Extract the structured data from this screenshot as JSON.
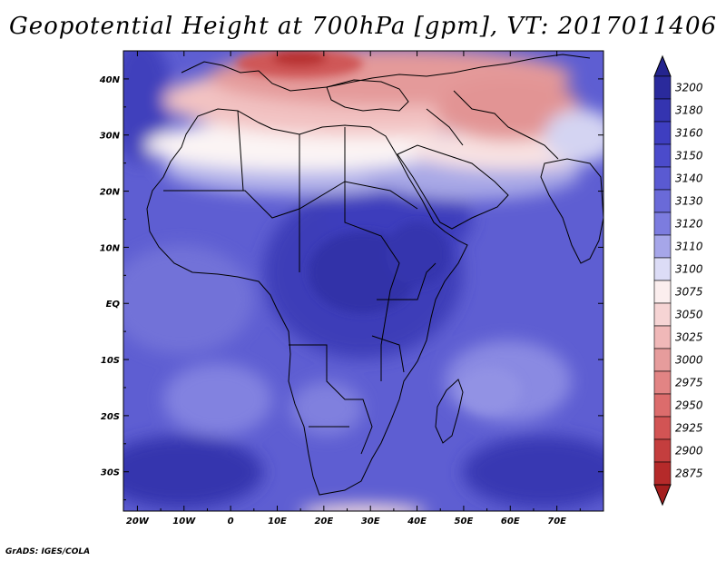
{
  "title": "Geopotential Height at 700hPa [gpm], VT: 2017011406",
  "credit": "GrADS: IGES/COLA",
  "map": {
    "lon_range": [
      -23,
      80
    ],
    "lat_range": [
      -37,
      45
    ],
    "lon_ticks": [
      {
        "value": -20,
        "label": "20W"
      },
      {
        "value": -10,
        "label": "10W"
      },
      {
        "value": 0,
        "label": "0"
      },
      {
        "value": 10,
        "label": "10E"
      },
      {
        "value": 20,
        "label": "20E"
      },
      {
        "value": 30,
        "label": "30E"
      },
      {
        "value": 40,
        "label": "40E"
      },
      {
        "value": 50,
        "label": "50E"
      },
      {
        "value": 60,
        "label": "60E"
      },
      {
        "value": 70,
        "label": "70E"
      }
    ],
    "lat_ticks": [
      {
        "value": 40,
        "label": "40N"
      },
      {
        "value": 30,
        "label": "30N"
      },
      {
        "value": 20,
        "label": "20N"
      },
      {
        "value": 10,
        "label": "10N"
      },
      {
        "value": 0,
        "label": "EQ"
      },
      {
        "value": -10,
        "label": "10S"
      },
      {
        "value": -20,
        "label": "20S"
      },
      {
        "value": -30,
        "label": "30S"
      }
    ]
  },
  "colorbar": {
    "levels": [
      "3200",
      "3180",
      "3160",
      "3150",
      "3140",
      "3130",
      "3120",
      "3110",
      "3100",
      "3075",
      "3050",
      "3025",
      "3000",
      "2975",
      "2950",
      "2925",
      "2900",
      "2875"
    ],
    "colors": [
      "#2a2a9c",
      "#3434b0",
      "#3e3ec0",
      "#4b4bcb",
      "#5a5ad2",
      "#6a6ad8",
      "#7c7cdf",
      "#a6a6e9",
      "#dcdcf6",
      "#fbeeee",
      "#f6d4d4",
      "#f0b8b8",
      "#e69c9c",
      "#e28484",
      "#dc6c6c",
      "#d25454",
      "#c43e3e",
      "#b52a2a"
    ]
  },
  "field_colors": {
    "deep": "#3a3ab8",
    "mid": "#5858cc",
    "light": "#7a7adc",
    "pale": "#b8b8ec",
    "white": "#fbf6f6",
    "pink": "#f2c8c8",
    "rose": "#e49a9a",
    "red": "#cf5a5a",
    "darkred": "#b83232",
    "coast": "#000000"
  }
}
